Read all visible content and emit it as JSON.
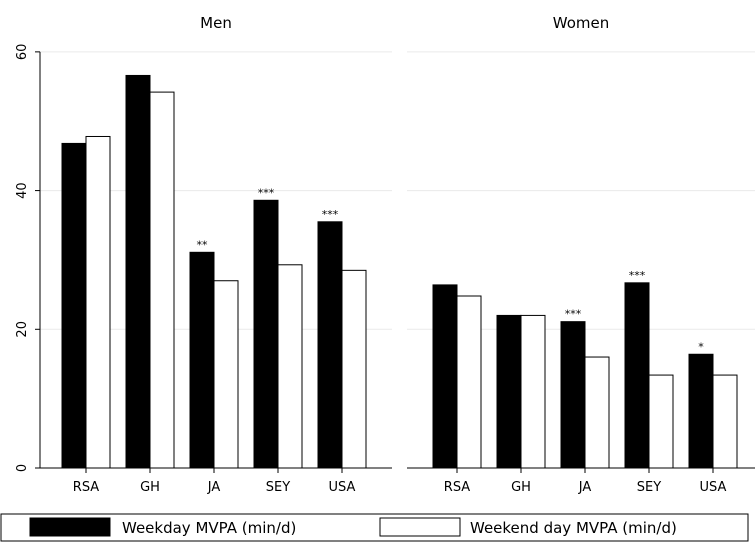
{
  "chart_data": [
    {
      "type": "bar",
      "title": "Men",
      "categories": [
        "RSA",
        "GH",
        "JA",
        "SEY",
        "USA"
      ],
      "ylim": [
        0,
        62
      ],
      "yticks": [
        0,
        20,
        40,
        60
      ],
      "grid": true,
      "series": [
        {
          "name": "Weekday MVPA (min/d)",
          "values": [
            46.8,
            56.6,
            31.1,
            38.6,
            35.5
          ],
          "color": "#000000"
        },
        {
          "name": "Weekend day MVPA (min/d)",
          "values": [
            47.8,
            54.2,
            27.0,
            29.3,
            28.5
          ],
          "color": "#ffffff"
        }
      ],
      "annotations": [
        "",
        "",
        "**",
        "***",
        "***"
      ]
    },
    {
      "type": "bar",
      "title": "Women",
      "categories": [
        "RSA",
        "GH",
        "JA",
        "SEY",
        "USA"
      ],
      "ylim": [
        0,
        62
      ],
      "yticks": [
        0,
        20,
        40,
        60
      ],
      "grid": true,
      "series": [
        {
          "name": "Weekday MVPA (min/d)",
          "values": [
            26.4,
            22.0,
            21.1,
            26.7,
            16.4
          ],
          "color": "#000000"
        },
        {
          "name": "Weekend day MVPA (min/d)",
          "values": [
            24.8,
            22.0,
            16.0,
            13.4,
            13.4
          ],
          "color": "#ffffff"
        }
      ],
      "annotations": [
        "",
        "",
        "***",
        "***",
        "*"
      ]
    }
  ],
  "legend": {
    "position": "bottom",
    "items": [
      {
        "label": "Weekday MVPA (min/d)",
        "color": "#000000"
      },
      {
        "label": "Weekend day MVPA (min/d)",
        "color": "#ffffff"
      }
    ]
  }
}
